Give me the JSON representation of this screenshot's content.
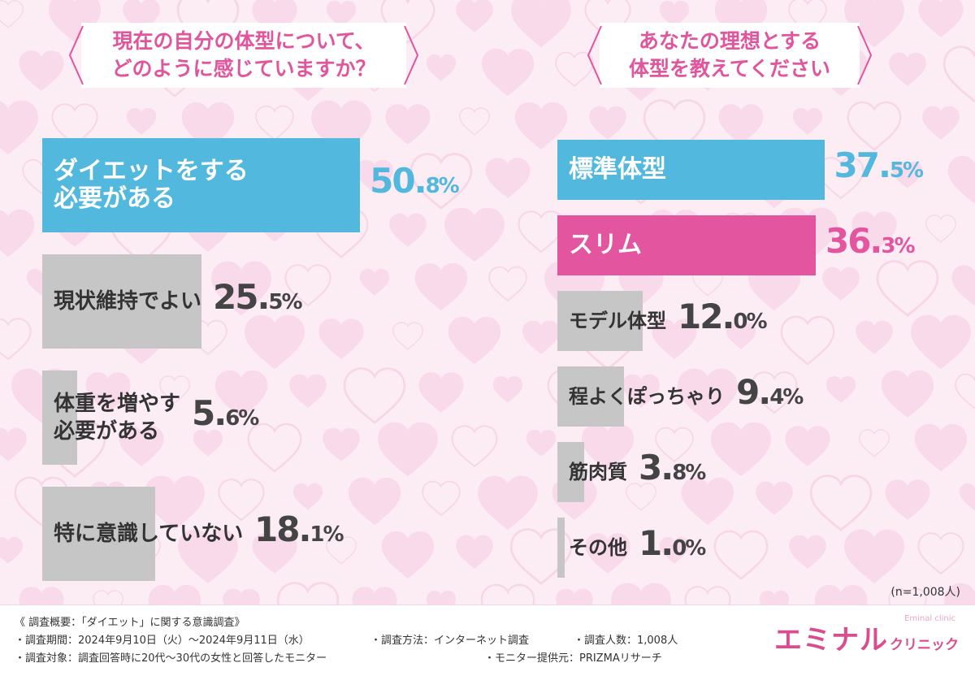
{
  "colors": {
    "blue": "#52b8dd",
    "pink": "#e3559f",
    "gray": "#c6c6c6",
    "title": "#e0559c",
    "text": "#333333"
  },
  "chart_data": [
    {
      "type": "bar",
      "title": "現在の自分の体型について、\nどのように感じていますか？",
      "title_lines": [
        "現在の自分の体型について、",
        "どのように感じていますか？"
      ],
      "categories": [
        "ダイエットをする\n必要がある",
        "現状維持でよい",
        "体重を増やす\n必要がある",
        "特に意識していない"
      ],
      "values": [
        50.8,
        25.5,
        5.6,
        18.1
      ],
      "value_labels": [
        [
          "50.",
          "8%"
        ],
        [
          "25.",
          "5%"
        ],
        [
          "5.",
          "6%"
        ],
        [
          "18.",
          "1%"
        ]
      ],
      "colors": [
        "blue",
        "gray",
        "gray",
        "gray"
      ],
      "xlim": [
        0,
        100
      ]
    },
    {
      "type": "bar",
      "title": "あなたの理想とする\n体型を教えてください",
      "title_lines": [
        "あなたの理想とする",
        "体型を教えてください"
      ],
      "categories": [
        "標準体型",
        "スリム",
        "モデル体型",
        "程よくぽっちゃり",
        "筋肉質",
        "その他"
      ],
      "values": [
        37.5,
        36.3,
        12.0,
        9.4,
        3.8,
        1.0
      ],
      "value_labels": [
        [
          "37.",
          "5%"
        ],
        [
          "36.",
          "3%"
        ],
        [
          "12.",
          "0%"
        ],
        [
          "9.",
          "4%"
        ],
        [
          "3.",
          "8%"
        ],
        [
          "1.",
          "0%"
        ]
      ],
      "colors": [
        "blue",
        "pink",
        "gray",
        "gray",
        "gray",
        "gray"
      ],
      "xlim": [
        0,
        100
      ]
    }
  ],
  "sample_note": "(n=1,008人)",
  "footer": {
    "line1": "《 調査概要：「ダイエット」に関する意識調査》",
    "period": "・調査期間：2024年9月10日（火）～2024年9月11日（水）",
    "method": "・調査方法：インターネット調査",
    "count": "・調査人数：1,008人",
    "target": "・調査対象：調査回答時に20代～30代の女性と回答したモニター",
    "provider": "・モニター提供元：PRIZMAリサーチ"
  },
  "logo": {
    "main": "エミナル",
    "sub": "クリニック",
    "tiny": "Eminal clinic"
  }
}
